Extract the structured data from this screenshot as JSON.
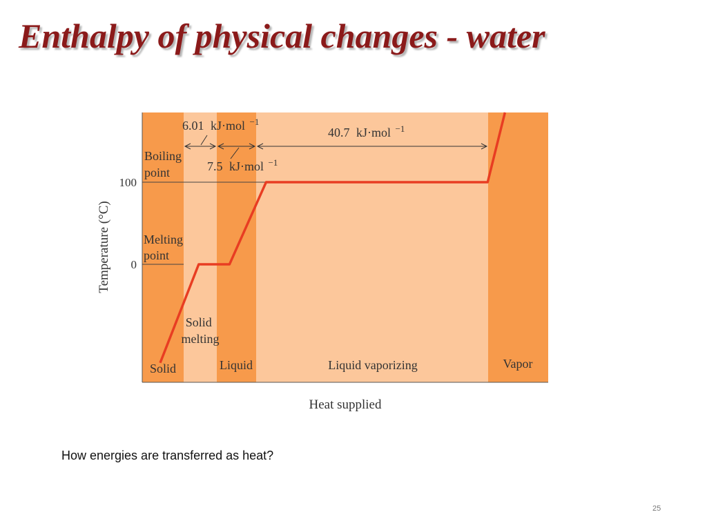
{
  "slide": {
    "title": "Enthalpy of physical changes - water",
    "caption": "How energies are transferred as heat?",
    "page_number": "25"
  },
  "chart_data": {
    "type": "line",
    "xlabel": "Heat supplied",
    "ylabel": "Temperature (°C)",
    "ytick_labels": [
      "0",
      "100"
    ],
    "colors": {
      "dark_band": "#f79a4b",
      "light_band": "#fcc79b",
      "line": "#e83d22",
      "reference_line": "#555555"
    },
    "regions": [
      {
        "name": "Solid",
        "shade": "dark"
      },
      {
        "name": "Solid melting",
        "shade": "light"
      },
      {
        "name": "Liquid",
        "shade": "dark"
      },
      {
        "name": "Liquid vaporizing",
        "shade": "light"
      },
      {
        "name": "Vapor",
        "shade": "dark"
      }
    ],
    "reference_lines": [
      {
        "y": 100,
        "label": "Boiling point"
      },
      {
        "y": 0,
        "label": "Melting point"
      }
    ],
    "heating_curve": [
      {
        "heat": 0.0,
        "temp": -120
      },
      {
        "heat": 1.0,
        "temp": 0
      },
      {
        "heat": 1.8,
        "temp": 0
      },
      {
        "heat": 2.75,
        "temp": 100
      },
      {
        "heat": 8.5,
        "temp": 100
      },
      {
        "heat": 8.95,
        "temp": 185
      }
    ],
    "annotations": [
      {
        "text_value": "6.01",
        "text_unit": "kJ·mol",
        "text_exp": "−1",
        "applies_to": "Solid melting"
      },
      {
        "text_value": "7.5",
        "text_unit": "kJ·mol",
        "text_exp": "−1",
        "applies_to": "Liquid"
      },
      {
        "text_value": "40.7",
        "text_unit": "kJ·mol",
        "text_exp": "−1",
        "applies_to": "Liquid vaporizing"
      }
    ]
  }
}
